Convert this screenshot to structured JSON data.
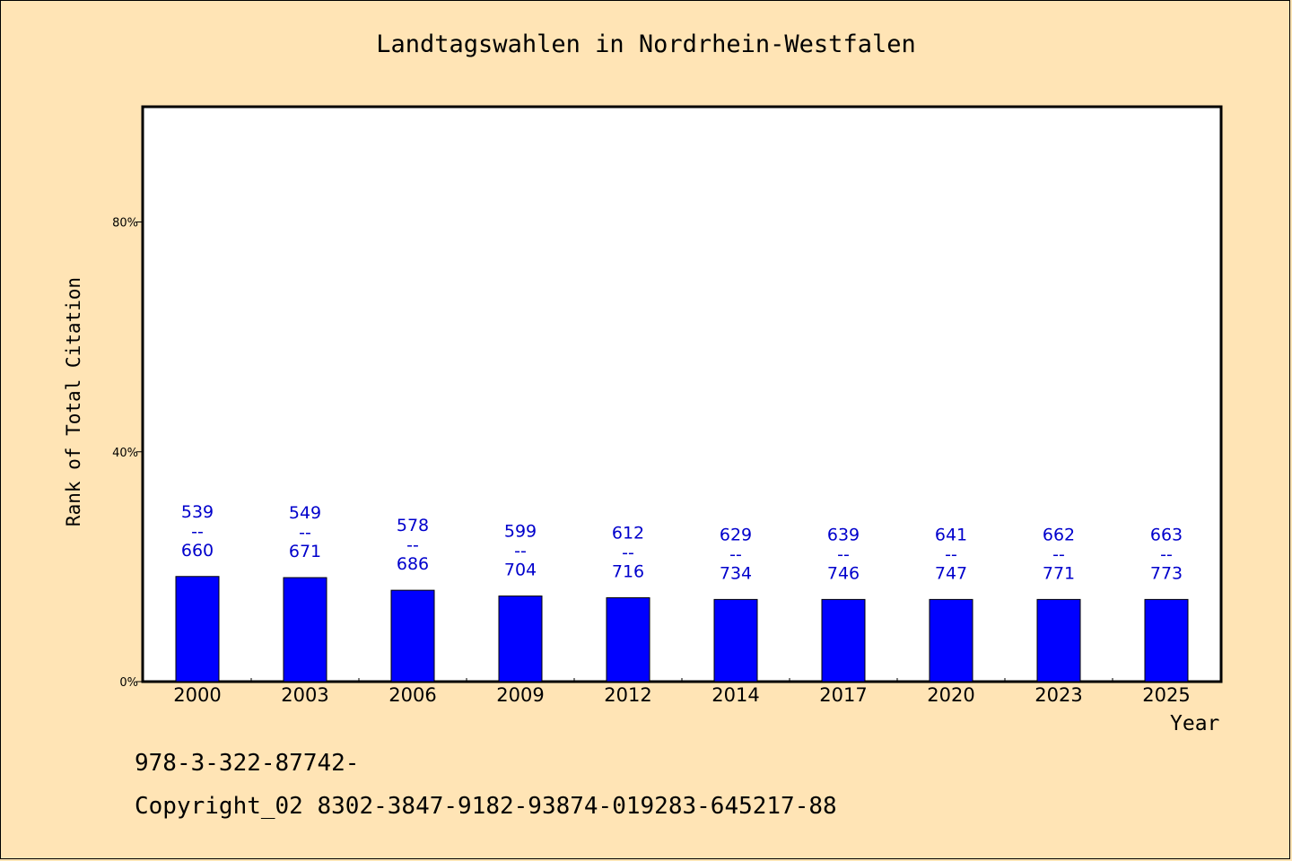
{
  "chart_data": {
    "type": "bar",
    "title": "Landtagswahlen in Nordrhein-Westfalen",
    "xlabel": "Year",
    "ylabel": "Rank of Total Citation",
    "ylim": [
      0,
      100
    ],
    "y_ticks": [
      {
        "value": 0,
        "label": "0%"
      },
      {
        "value": 40,
        "label": "40%"
      },
      {
        "value": 80,
        "label": "80%"
      }
    ],
    "categories": [
      "2000",
      "2003",
      "2006",
      "2009",
      "2012",
      "2014",
      "2017",
      "2020",
      "2023",
      "2025"
    ],
    "values": [
      18.3,
      18.1,
      15.9,
      14.9,
      14.6,
      14.3,
      14.3,
      14.3,
      14.3,
      14.3
    ],
    "annotations": [
      {
        "top": "539",
        "sep": "--",
        "bottom": "660"
      },
      {
        "top": "549",
        "sep": "--",
        "bottom": "671"
      },
      {
        "top": "578",
        "sep": "--",
        "bottom": "686"
      },
      {
        "top": "599",
        "sep": "--",
        "bottom": "704"
      },
      {
        "top": "612",
        "sep": "--",
        "bottom": "716"
      },
      {
        "top": "629",
        "sep": "--",
        "bottom": "734"
      },
      {
        "top": "639",
        "sep": "--",
        "bottom": "746"
      },
      {
        "top": "641",
        "sep": "--",
        "bottom": "747"
      },
      {
        "top": "662",
        "sep": "--",
        "bottom": "771"
      },
      {
        "top": "663",
        "sep": "--",
        "bottom": "773"
      }
    ],
    "bar_color": "#0000ff",
    "label_color": "#0000cc",
    "background_color": "#ffe4b5",
    "plot_background": "#ffffff",
    "grid": false,
    "legend": "none"
  },
  "footer": {
    "isbn": "978-3-322-87742-",
    "copyright": "Copyright_02 8302-3847-9182-93874-019283-645217-88"
  }
}
